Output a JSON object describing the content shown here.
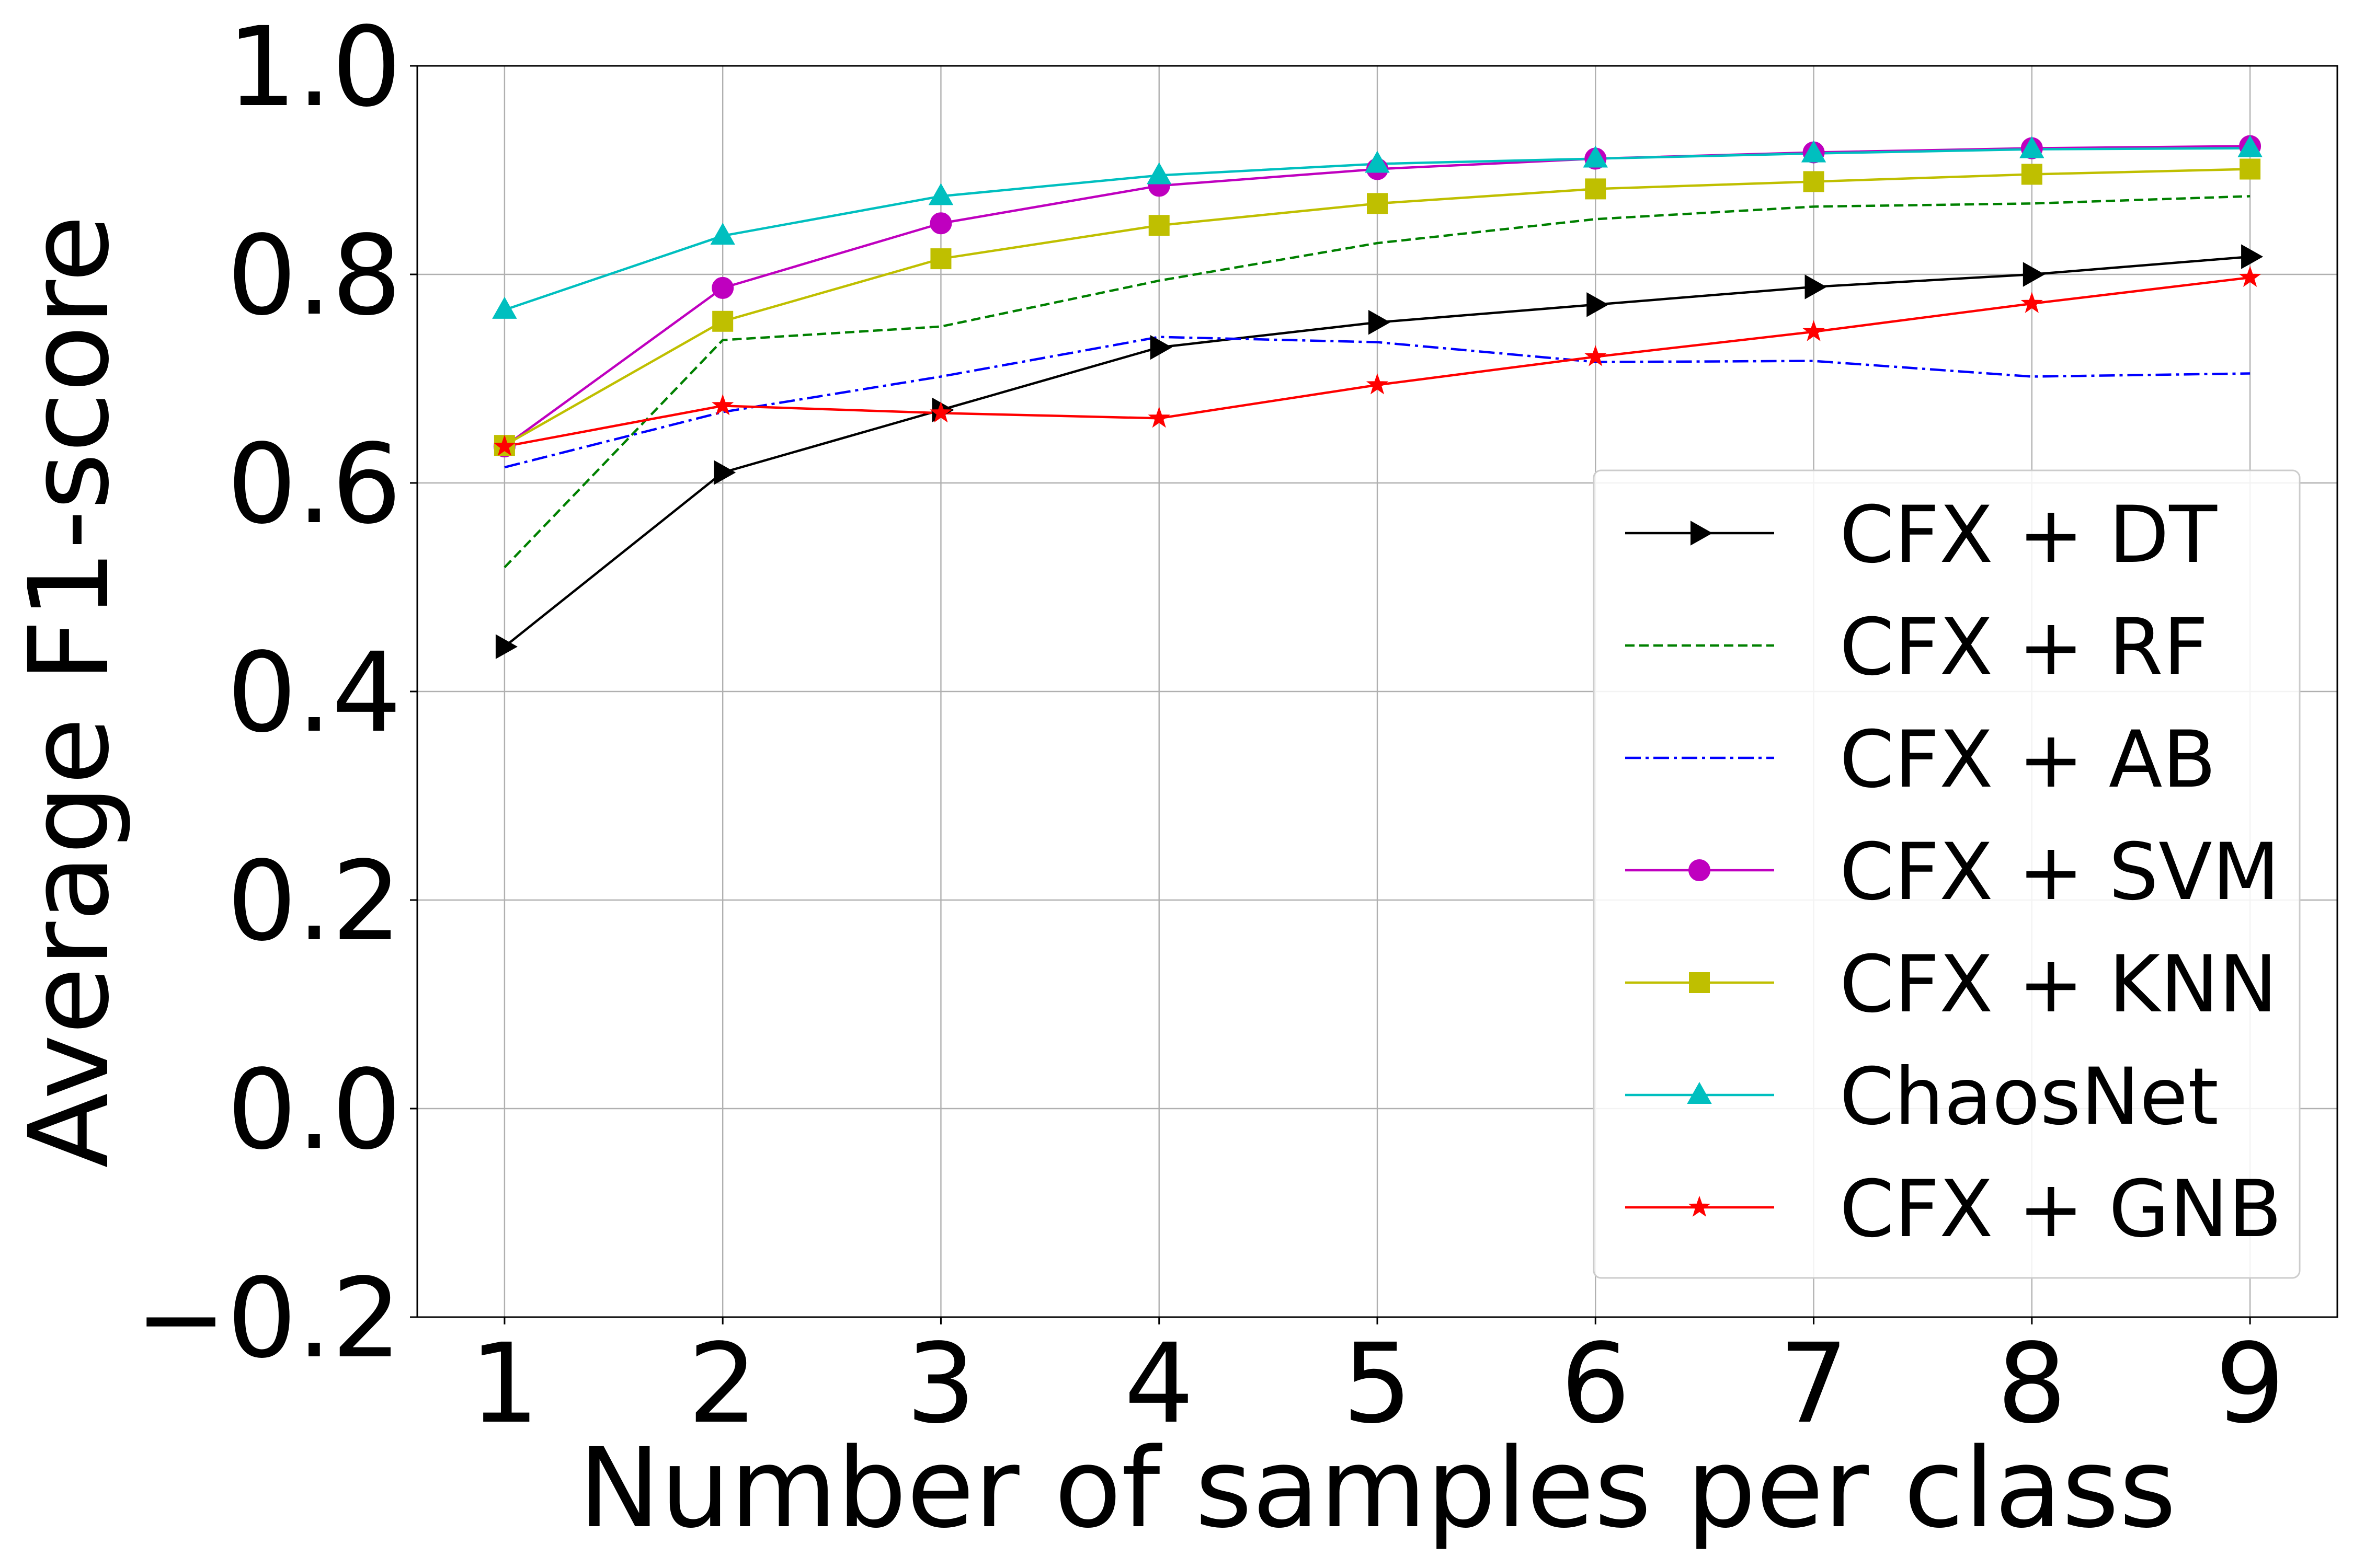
{
  "chart_data": {
    "type": "line",
    "title": "",
    "xlabel": "Number of samples per class",
    "ylabel": "Average F1-score",
    "x": [
      1,
      2,
      3,
      4,
      5,
      6,
      7,
      8,
      9
    ],
    "xlim": [
      0.6,
      9.4
    ],
    "ylim": [
      -0.2,
      1.0
    ],
    "xticks": [
      1,
      2,
      3,
      4,
      5,
      6,
      7,
      8,
      9
    ],
    "xtick_labels": [
      "1",
      "2",
      "3",
      "4",
      "5",
      "6",
      "7",
      "8",
      "9"
    ],
    "yticks": [
      -0.2,
      0.0,
      0.2,
      0.4,
      0.6,
      0.8,
      1.0
    ],
    "ytick_labels": [
      "−0.2",
      "0.0",
      "0.2",
      "0.4",
      "0.6",
      "0.8",
      "1.0"
    ],
    "grid": true,
    "legend_position": "center-right",
    "series": [
      {
        "name": "CFX + DT",
        "color": "#000000",
        "linestyle": "solid",
        "marker": "triangle-right",
        "values": [
          0.443,
          0.61,
          0.67,
          0.73,
          0.754,
          0.771,
          0.788,
          0.8,
          0.817
        ]
      },
      {
        "name": "CFX + RF",
        "color": "#008000",
        "linestyle": "dashed",
        "marker": "none",
        "values": [
          0.519,
          0.737,
          0.75,
          0.794,
          0.83,
          0.853,
          0.865,
          0.868,
          0.875
        ]
      },
      {
        "name": "CFX + AB",
        "color": "#0000ff",
        "linestyle": "dashdot",
        "marker": "none",
        "values": [
          0.615,
          0.668,
          0.702,
          0.74,
          0.735,
          0.716,
          0.717,
          0.702,
          0.705
        ]
      },
      {
        "name": "CFX + SVM",
        "color": "#bf00bf",
        "linestyle": "solid",
        "marker": "circle",
        "values": [
          0.635,
          0.787,
          0.849,
          0.885,
          0.901,
          0.911,
          0.917,
          0.921,
          0.923
        ]
      },
      {
        "name": "CFX + KNN",
        "color": "#bfbf00",
        "linestyle": "solid",
        "marker": "square",
        "values": [
          0.636,
          0.755,
          0.815,
          0.847,
          0.868,
          0.882,
          0.889,
          0.896,
          0.901
        ]
      },
      {
        "name": "ChaosNet",
        "color": "#00bfbf",
        "linestyle": "solid",
        "marker": "triangle-up",
        "values": [
          0.766,
          0.837,
          0.875,
          0.895,
          0.906,
          0.911,
          0.916,
          0.92,
          0.921
        ]
      },
      {
        "name": "CFX + GNB",
        "color": "#ff0000",
        "linestyle": "solid",
        "marker": "star",
        "values": [
          0.635,
          0.674,
          0.667,
          0.662,
          0.694,
          0.721,
          0.745,
          0.772,
          0.797
        ]
      }
    ]
  }
}
